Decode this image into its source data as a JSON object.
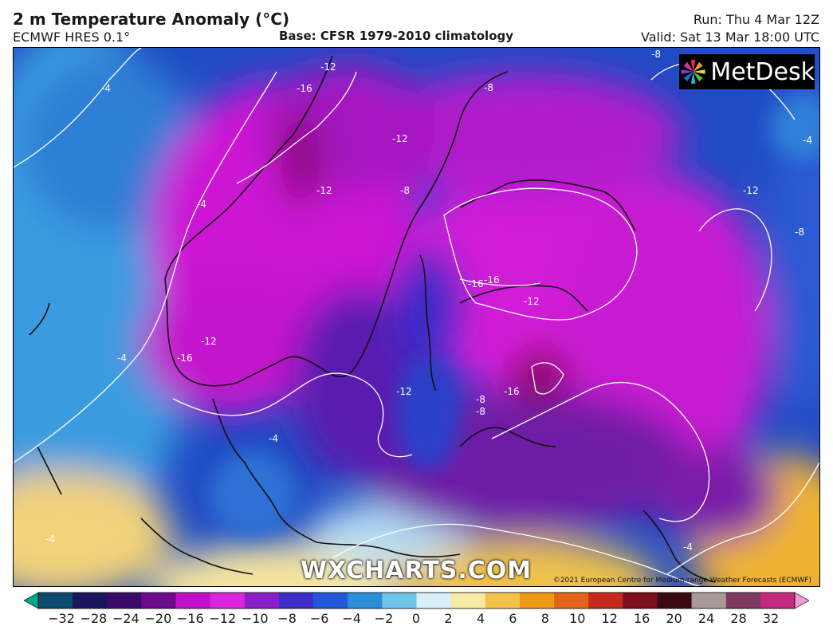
{
  "header": {
    "title": "2 m Temperature Anomaly (°C)",
    "subtitle": "ECMWF HRES 0.1°",
    "base": "Base: CFSR 1979-2010 climatology",
    "run": "Run: Thu 4 Mar 12Z",
    "valid": "Valid: Sat 13 Mar 18:00 UTC"
  },
  "map": {
    "logo": "MetDesk",
    "watermark": "WXCHARTS.COM",
    "credit": "©2021 European Centre for Medium-range Weather Forecasts (ECMWF)",
    "contour_labels": [
      "-8",
      "-4",
      "-16",
      "-12",
      "-8",
      "-12",
      "-12",
      "-8",
      "-12",
      "-16",
      "-8",
      "-4",
      "-12",
      "-16",
      "-12",
      "-16",
      "-12",
      "-8",
      "-4",
      "-16",
      "-8",
      "-4",
      "-4",
      "-4",
      "-4"
    ]
  },
  "colorbar": {
    "ticks": [
      "−32",
      "−28",
      "−24",
      "−20",
      "−16",
      "−12",
      "−10",
      "−8",
      "−6",
      "−4",
      "−2",
      "0",
      "2",
      "4",
      "6",
      "8",
      "10",
      "12",
      "16",
      "20",
      "24",
      "28",
      "32"
    ],
    "colors": [
      "#00a88a",
      "#0a4a6e",
      "#1b1461",
      "#3a0a6b",
      "#6e0a8e",
      "#c010c8",
      "#d925dc",
      "#8a1fc8",
      "#3d2fc6",
      "#2258d8",
      "#2a8ed8",
      "#6ec5ea",
      "#d8eef8",
      "#f6eaa6",
      "#f3c24c",
      "#ef9a14",
      "#e0651a",
      "#c42a1e",
      "#7e0f1c",
      "#3a0a10",
      "#a89a9a",
      "#7e3a5e",
      "#c22a7e",
      "#f29ad0"
    ]
  },
  "colors": {
    "magenta": "#d020d8",
    "deep_purple": "#6a1aa8",
    "blue": "#2446c8",
    "light_blue": "#3aa2e0",
    "yellow": "#f0c040"
  }
}
